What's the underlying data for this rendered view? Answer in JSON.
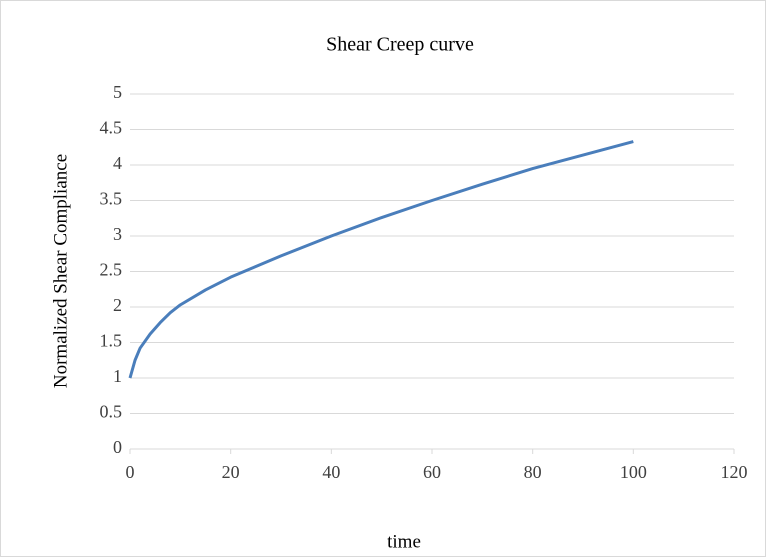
{
  "chart_data": {
    "type": "line",
    "title": "Shear Creep curve",
    "xlabel": "time",
    "ylabel": "Normalized Shear Compliance",
    "x": [
      0,
      1,
      2,
      4,
      6,
      8,
      10,
      15,
      20,
      25,
      30,
      40,
      50,
      60,
      70,
      80,
      90,
      100
    ],
    "series": [
      {
        "name": "Shear Compliance",
        "color": "#4a7ebb",
        "values": [
          1,
          1.25,
          1.42,
          1.62,
          1.78,
          1.92,
          2.03,
          2.24,
          2.42,
          2.57,
          2.72,
          3.0,
          3.26,
          3.5,
          3.73,
          3.95,
          4.14,
          4.33
        ]
      }
    ],
    "xlim": [
      0,
      120
    ],
    "xticks": [
      0,
      20,
      40,
      60,
      80,
      100,
      120
    ],
    "ylim": [
      0,
      5
    ],
    "yticks": [
      0,
      0.5,
      1,
      1.5,
      2,
      2.5,
      3,
      3.5,
      4,
      4.5,
      5
    ],
    "grid": true
  }
}
